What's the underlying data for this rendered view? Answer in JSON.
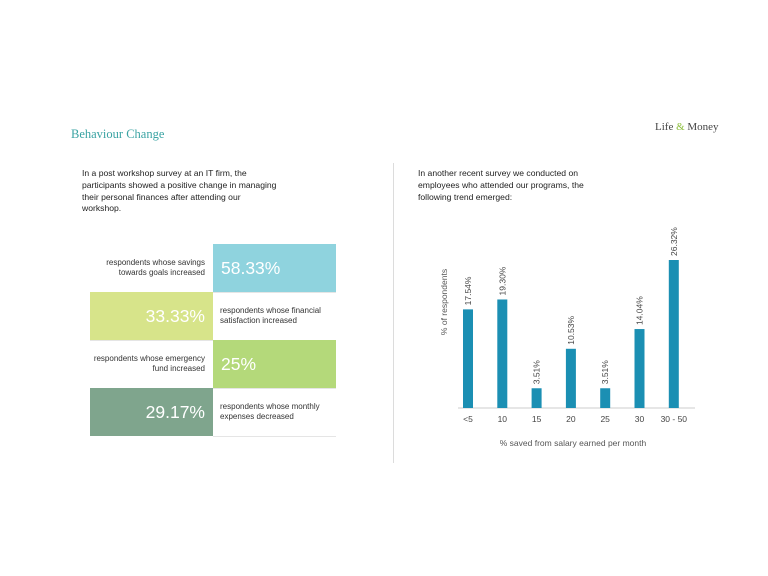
{
  "header": {
    "title": "Behaviour Change",
    "brand_left": "Life",
    "brand_amp": "&",
    "brand_right": "Money"
  },
  "left_panel": {
    "intro": "In a post workshop survey at an IT firm, the participants showed a positive change in managing their personal finances after attending our workshop.",
    "stats": [
      {
        "value": "58.33%",
        "description": "respondents whose savings towards goals increased",
        "color": "#8fd3de"
      },
      {
        "value": "33.33%",
        "description": "respondents whose financial satisfaction increased",
        "color": "#d7e48a"
      },
      {
        "value": "25%",
        "description": "respondents whose emergency fund increased",
        "color": "#b4d97a"
      },
      {
        "value": "29.17%",
        "description": "respondents whose monthly expenses decreased",
        "color": "#7fa58d"
      }
    ]
  },
  "right_panel": {
    "intro": "In another recent survey we conducted on employees who attended our programs, the following trend emerged:"
  },
  "chart_data": {
    "type": "bar",
    "categories": [
      "<5",
      "10",
      "15",
      "20",
      "25",
      "30",
      "30 - 50"
    ],
    "values": [
      17.54,
      19.3,
      3.51,
      10.53,
      3.51,
      14.04,
      26.32
    ],
    "value_labels": [
      "17.54%",
      "19.30%",
      "3.51%",
      "10.53%",
      "3.51%",
      "14.04%",
      "26.32%"
    ],
    "xlabel": "% saved from salary earned per month",
    "ylabel": "% of respondents",
    "ylim": [
      0,
      26.32
    ],
    "bar_color": "#1b8fb3",
    "grid": false,
    "legend": "none"
  }
}
